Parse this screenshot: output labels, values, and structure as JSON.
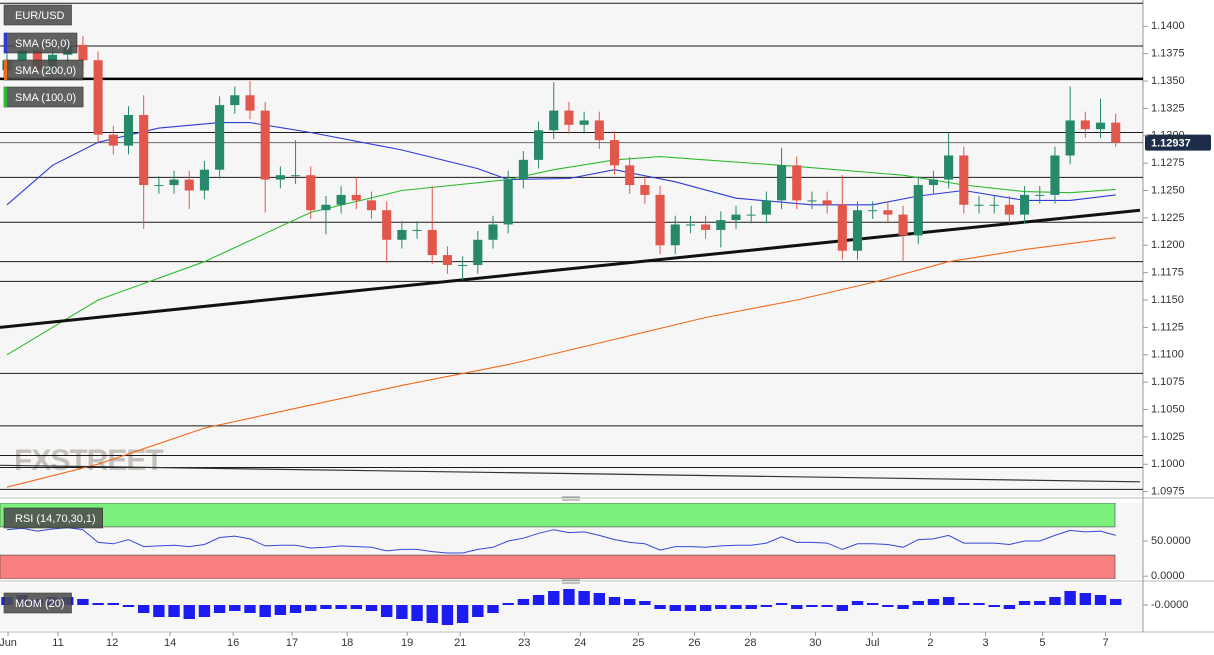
{
  "chart_data": [
    {
      "type": "candlestick",
      "title": "EUR/USD",
      "watermark": "FXSTREET",
      "xlim": [
        -0.46,
        74.6
      ],
      "ylim": [
        1.0971,
        1.1424
      ],
      "xticks": [
        {
          "value": 0.07,
          "label": "Jun"
        },
        {
          "value": 3.36,
          "label": "11"
        },
        {
          "value": 6.92,
          "label": "12"
        },
        {
          "value": 10.74,
          "label": "14"
        },
        {
          "value": 14.89,
          "label": "16"
        },
        {
          "value": 18.77,
          "label": "17"
        },
        {
          "value": 22.4,
          "label": "18"
        },
        {
          "value": 26.35,
          "label": "19"
        },
        {
          "value": 29.84,
          "label": "21"
        },
        {
          "value": 34.06,
          "label": "23"
        },
        {
          "value": 37.75,
          "label": "24"
        },
        {
          "value": 41.57,
          "label": "25"
        },
        {
          "value": 45.26,
          "label": "26"
        },
        {
          "value": 48.95,
          "label": "28"
        },
        {
          "value": 53.23,
          "label": "30"
        },
        {
          "value": 56.98,
          "label": "Jul"
        },
        {
          "value": 60.8,
          "label": "2"
        },
        {
          "value": 64.43,
          "label": "3"
        },
        {
          "value": 68.18,
          "label": "5"
        },
        {
          "value": 72.33,
          "label": "7"
        }
      ],
      "yticks": [
        {
          "value": 1.0975,
          "label": "1.0975"
        },
        {
          "value": 1.1,
          "label": "1.1000"
        },
        {
          "value": 1.1025,
          "label": "1.1025"
        },
        {
          "value": 1.105,
          "label": "1.1050"
        },
        {
          "value": 1.1075,
          "label": "1.1075"
        },
        {
          "value": 1.11,
          "label": "1.1100"
        },
        {
          "value": 1.1125,
          "label": "1.1125"
        },
        {
          "value": 1.115,
          "label": "1.1150"
        },
        {
          "value": 1.1175,
          "label": "1.1175"
        },
        {
          "value": 1.12,
          "label": "1.1200"
        },
        {
          "value": 1.1225,
          "label": "1.1225"
        },
        {
          "value": 1.125,
          "label": "1.1250"
        },
        {
          "value": 1.1275,
          "label": "1.1275"
        },
        {
          "value": 1.13,
          "label": "1.1300"
        },
        {
          "value": 1.1325,
          "label": "1.1325"
        },
        {
          "value": 1.135,
          "label": "1.1350"
        },
        {
          "value": 1.1375,
          "label": "1.1375"
        },
        {
          "value": 1.14,
          "label": "1.1400"
        }
      ],
      "up_color": "#26896b",
      "down_color": "#e2574c",
      "open": [
        1.136,
        1.1369,
        1.1378,
        1.136,
        1.1374,
        1.1383,
        1.1369,
        1.1301,
        1.1291,
        1.1319,
        1.1255,
        1.1255,
        1.126,
        1.125,
        1.1269,
        1.1328,
        1.1337,
        1.1323,
        1.126,
        1.1264,
        1.1264,
        1.1232,
        1.1237,
        1.1246,
        1.1241,
        1.1232,
        1.1205,
        1.1214,
        1.1214,
        1.1191,
        1.1182,
        1.1182,
        1.1205,
        1.1219,
        1.126,
        1.1278,
        1.1305,
        1.1323,
        1.131,
        1.1314,
        1.1296,
        1.1273,
        1.1255,
        1.1246,
        1.12,
        1.1219,
        1.1219,
        1.1214,
        1.1223,
        1.1228,
        1.1228,
        1.1241,
        1.1273,
        1.1241,
        1.1241,
        1.1237,
        1.1195,
        1.1232,
        1.1232,
        1.1228,
        1.1209,
        1.1255,
        1.126,
        1.1282,
        1.1237,
        1.1237,
        1.1237,
        1.1228,
        1.1246,
        1.1246,
        1.1282,
        1.1314,
        1.1306,
        1.1312
      ],
      "high": [
        1.1377,
        1.1386,
        1.1386,
        1.1382,
        1.1391,
        1.1391,
        1.1377,
        1.1309,
        1.1327,
        1.1337,
        1.1263,
        1.1268,
        1.1268,
        1.1277,
        1.1336,
        1.1345,
        1.135,
        1.1331,
        1.1272,
        1.1296,
        1.1272,
        1.1245,
        1.1254,
        1.1262,
        1.1249,
        1.124,
        1.1222,
        1.1222,
        1.1254,
        1.1199,
        1.119,
        1.1213,
        1.1227,
        1.1268,
        1.1286,
        1.1313,
        1.1349,
        1.1331,
        1.1322,
        1.1322,
        1.1304,
        1.1281,
        1.1263,
        1.1254,
        1.1227,
        1.1227,
        1.1227,
        1.1231,
        1.1236,
        1.1236,
        1.1249,
        1.1289,
        1.1281,
        1.1249,
        1.1249,
        1.1264,
        1.124,
        1.124,
        1.124,
        1.1236,
        1.1263,
        1.1268,
        1.1303,
        1.129,
        1.1245,
        1.1245,
        1.1245,
        1.1254,
        1.1254,
        1.129,
        1.1345,
        1.1322,
        1.1334,
        1.132
      ],
      "low": [
        1.1352,
        1.1361,
        1.1352,
        1.1352,
        1.1366,
        1.1361,
        1.1293,
        1.1283,
        1.1283,
        1.1215,
        1.1247,
        1.1247,
        1.1233,
        1.1242,
        1.1261,
        1.132,
        1.1315,
        1.123,
        1.1252,
        1.1256,
        1.1224,
        1.121,
        1.1229,
        1.1233,
        1.1224,
        1.1184,
        1.1197,
        1.1206,
        1.1183,
        1.1174,
        1.1168,
        1.1174,
        1.1197,
        1.1211,
        1.1252,
        1.127,
        1.1297,
        1.1302,
        1.1302,
        1.1288,
        1.1265,
        1.1247,
        1.1238,
        1.1192,
        1.1192,
        1.1211,
        1.1206,
        1.1198,
        1.1215,
        1.122,
        1.122,
        1.1233,
        1.1233,
        1.1233,
        1.1229,
        1.1187,
        1.1187,
        1.1224,
        1.122,
        1.1185,
        1.1201,
        1.1247,
        1.1252,
        1.1229,
        1.1229,
        1.1229,
        1.122,
        1.122,
        1.1238,
        1.1238,
        1.1274,
        1.1298,
        1.1298,
        1.129
      ],
      "close": [
        1.1369,
        1.1378,
        1.136,
        1.1374,
        1.1383,
        1.1369,
        1.1301,
        1.1291,
        1.1319,
        1.1255,
        1.1255,
        1.126,
        1.125,
        1.1269,
        1.1328,
        1.1337,
        1.1323,
        1.126,
        1.1264,
        1.1264,
        1.1232,
        1.1237,
        1.1246,
        1.1241,
        1.1232,
        1.1205,
        1.1214,
        1.1214,
        1.1191,
        1.1182,
        1.1182,
        1.1205,
        1.1219,
        1.126,
        1.1278,
        1.1305,
        1.1323,
        1.131,
        1.1314,
        1.1296,
        1.1273,
        1.1255,
        1.1246,
        1.12,
        1.1219,
        1.1219,
        1.1214,
        1.1223,
        1.1228,
        1.1228,
        1.1241,
        1.1273,
        1.1241,
        1.1241,
        1.1237,
        1.1195,
        1.1232,
        1.1232,
        1.1228,
        1.1209,
        1.1255,
        1.126,
        1.1282,
        1.1237,
        1.1237,
        1.1237,
        1.1228,
        1.1246,
        1.1246,
        1.1282,
        1.1314,
        1.1306,
        1.1312,
        1.12937
      ],
      "series": [
        {
          "name": "SMA (50,0)",
          "color": "#2c3bd6",
          "x": [
            0,
            3,
            6,
            10,
            14,
            16,
            20,
            26,
            31,
            33,
            37,
            40,
            44,
            48,
            53,
            57,
            60,
            63,
            67,
            70,
            73
          ],
          "values": [
            1.1237,
            1.1273,
            1.1294,
            1.1307,
            1.1312,
            1.1312,
            1.1303,
            1.1287,
            1.127,
            1.126,
            1.1261,
            1.1269,
            1.1258,
            1.1243,
            1.1237,
            1.1237,
            1.1245,
            1.125,
            1.1241,
            1.1241,
            1.1246
          ]
        },
        {
          "name": "SMA (200,0)",
          "color": "#f26a1b",
          "x": [
            0,
            6,
            13,
            20,
            26,
            33,
            40,
            46,
            52,
            57,
            62,
            67,
            73
          ],
          "values": [
            1.0979,
            1.1,
            1.1033,
            1.1054,
            1.1072,
            1.1091,
            1.1114,
            1.1134,
            1.115,
            1.1166,
            1.1185,
            1.1196,
            1.1207
          ]
        },
        {
          "name": "SMA (100,0)",
          "color": "#2dbb2d",
          "x": [
            0,
            6,
            13,
            20,
            26,
            33,
            36,
            40,
            43,
            46,
            52,
            59,
            63,
            67,
            70,
            73
          ],
          "values": [
            1.11,
            1.115,
            1.1185,
            1.123,
            1.125,
            1.126,
            1.1269,
            1.1278,
            1.1281,
            1.1278,
            1.1272,
            1.1264,
            1.1255,
            1.1249,
            1.1248,
            1.1251
          ]
        }
      ],
      "levels": [
        1.1421,
        1.1382,
        1.1303,
        1.1262,
        1.1221,
        1.1185,
        1.1167,
        1.1083,
        1.1035,
        1.1008,
        1.0997,
        1.0977
      ],
      "key_level": 1.1352,
      "trendlines": [
        {
          "color": "#111111",
          "x": [
            -0.46,
            74.6
          ],
          "values": [
            1.1125,
            1.1232
          ]
        },
        {
          "color": "#333333",
          "x": [
            -0.46,
            74.6
          ],
          "values": [
            1.0999,
            1.0984
          ]
        }
      ],
      "last_price": 1.12937
    },
    {
      "type": "line",
      "title": "RSI (14,70,30,1)",
      "ylim": [
        -4,
        104
      ],
      "yticks": [
        {
          "value": 50,
          "label": "50.0000"
        },
        {
          "value": 0,
          "label": "0.0000"
        }
      ],
      "overbought": 70,
      "oversold": 30,
      "overbought_color": "#7cf07c",
      "oversold_color": "#f98080",
      "color": "#3448d8",
      "values": [
        66,
        68,
        64,
        67,
        69,
        66,
        48,
        46,
        52,
        42,
        43,
        44,
        42,
        45,
        55,
        57,
        53,
        43,
        44,
        44,
        40,
        41,
        43,
        42,
        41,
        36,
        38,
        38,
        35,
        33,
        33,
        38,
        41,
        50,
        54,
        61,
        66,
        62,
        63,
        58,
        52,
        48,
        46,
        37,
        42,
        42,
        41,
        43,
        44,
        44,
        47,
        56,
        48,
        48,
        47,
        38,
        46,
        46,
        45,
        41,
        52,
        53,
        58,
        47,
        47,
        47,
        45,
        50,
        50,
        58,
        65,
        63,
        64,
        58
      ]
    },
    {
      "type": "bar",
      "title": "MOM (20)",
      "ylim": [
        -0.0125,
        0.011
      ],
      "yticks": [
        {
          "value": 0,
          "label": "-0.0000"
        }
      ],
      "color": "#1c1cf0",
      "values": [
        0.004,
        0.005,
        0.003,
        0.004,
        0.004,
        0.003,
        0.001,
        0.001,
        -0.001,
        -0.004,
        -0.006,
        -0.006,
        -0.007,
        -0.006,
        -0.004,
        -0.003,
        -0.004,
        -0.006,
        -0.005,
        -0.004,
        -0.003,
        -0.002,
        -0.002,
        -0.002,
        -0.003,
        -0.006,
        -0.007,
        -0.008,
        -0.009,
        -0.01,
        -0.009,
        -0.006,
        -0.004,
        0.001,
        0.003,
        0.005,
        0.007,
        0.008,
        0.007,
        0.006,
        0.004,
        0.003,
        0.002,
        -0.002,
        -0.003,
        -0.003,
        -0.003,
        -0.002,
        -0.002,
        -0.002,
        -0.001,
        0.001,
        -0.002,
        -0.001,
        -0.001,
        -0.003,
        0.002,
        0.001,
        -0.001,
        -0.002,
        0.002,
        0.003,
        0.004,
        0.001,
        0.001,
        -0.001,
        -0.002,
        0.002,
        0.002,
        0.004,
        0.007,
        0.006,
        0.005,
        0.003
      ]
    }
  ]
}
